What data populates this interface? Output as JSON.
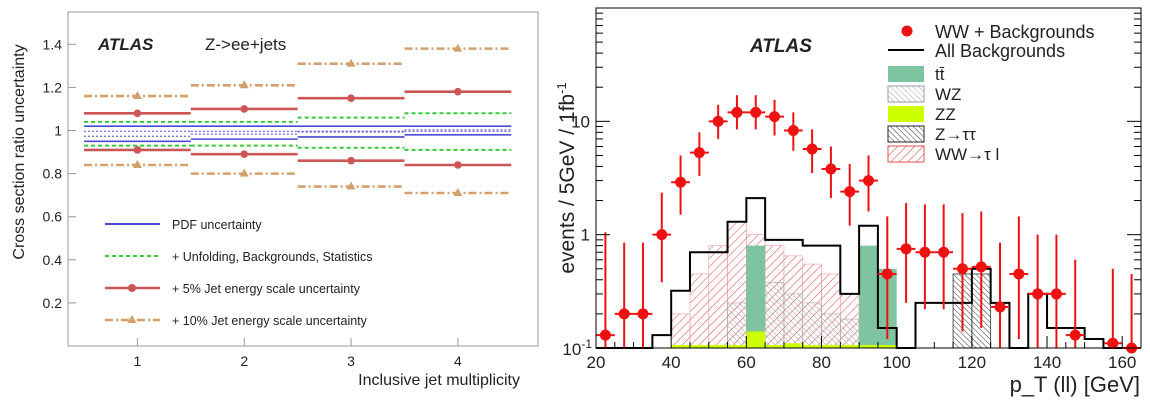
{
  "colors": {
    "pdf": "#4a4ad8",
    "unfold": "#33cc33",
    "jes5": "#cc5555",
    "jes10": "#d4a06a",
    "data": "#ee1111",
    "ttbar": "#7fc4a0",
    "zz": "#ccff00",
    "wwtau": "#e05050"
  },
  "chart_data": [
    {
      "type": "line",
      "panel": "left",
      "brand": "ATLAS",
      "subtitle": "Z->ee+jets",
      "xlabel": "Inclusive jet multiplicity",
      "ylabel": "Cross section ratio uncertainty",
      "xlim": [
        0.35,
        4.75
      ],
      "ylim": [
        0.0,
        1.55
      ],
      "xticks": [
        "1",
        "2",
        "3",
        "4"
      ],
      "yticks": [
        "0.2",
        "0.4",
        "0.6",
        "0.8",
        "1",
        "1.2",
        "1.4"
      ],
      "bins": [
        1,
        2,
        3,
        4
      ],
      "series": [
        {
          "name": "PDF uncertainty",
          "style": "solid",
          "color_key": "pdf",
          "upper": [
            1.02,
            1.02,
            1.02,
            1.02
          ],
          "lower": [
            0.95,
            0.96,
            0.97,
            0.98
          ]
        },
        {
          "name": "+ Unfolding, Backgrounds, Statistics",
          "style": "dashed",
          "color_key": "unfold",
          "upper": [
            1.04,
            1.04,
            1.06,
            1.08
          ],
          "lower": [
            0.93,
            0.93,
            0.92,
            0.91
          ]
        },
        {
          "name": "+   5% Jet energy scale uncertainty",
          "style": "solid-marker",
          "color_key": "jes5",
          "upper": [
            1.08,
            1.1,
            1.15,
            1.18
          ],
          "lower": [
            0.91,
            0.89,
            0.86,
            0.84
          ]
        },
        {
          "name": "+ 10% Jet energy scale uncertainty",
          "style": "dashdot-marker",
          "color_key": "jes10",
          "upper": [
            1.16,
            1.21,
            1.31,
            1.38
          ],
          "lower": [
            0.84,
            0.8,
            0.74,
            0.71
          ]
        }
      ]
    },
    {
      "type": "bar",
      "panel": "right",
      "brand": "ATLAS",
      "xlabel": "p_T (ll) [GeV]",
      "ylabel": "events / 5GeV / 1fb",
      "ylabel_sup": "-1",
      "log_y": true,
      "xlim": [
        20,
        165
      ],
      "ylim": [
        0.1,
        100
      ],
      "xticks": [
        "20",
        "40",
        "60",
        "80",
        "100",
        "120",
        "140",
        "160"
      ],
      "yticks": [
        "10",
        "1"
      ],
      "ytick_bottom": "10",
      "ytick_bottom_sup": "-1",
      "bin_edges": [
        20,
        25,
        30,
        35,
        40,
        45,
        50,
        55,
        60,
        65,
        70,
        75,
        80,
        85,
        90,
        95,
        100,
        105,
        110,
        115,
        120,
        125,
        130,
        135,
        140,
        145,
        150,
        155,
        160,
        165
      ],
      "all_backgrounds": [
        0.1,
        0.1,
        0.1,
        0.13,
        0.32,
        0.7,
        0.7,
        1.3,
        2.1,
        0.9,
        0.9,
        0.8,
        0.8,
        0.3,
        1.2,
        0.15,
        0.1,
        0.25,
        0.25,
        0.25,
        0.5,
        0.25,
        0.1,
        0.3,
        0.15,
        0.15,
        0.12,
        0.1,
        0.1
      ],
      "ww_tau_l": [
        0.1,
        0.1,
        0.1,
        0.1,
        0.2,
        0.45,
        0.8,
        1.3,
        1.0,
        0.8,
        0.65,
        0.55,
        0.45,
        0.3,
        0.25,
        0.15,
        0.1,
        0.1,
        0.1,
        0.1,
        0.1,
        0.1,
        0.1,
        0.1,
        0.1,
        0.1,
        0.1,
        0.1,
        0.1
      ],
      "ttbar_bins": [
        {
          "x0": 60,
          "x1": 65,
          "value": 0.8
        },
        {
          "x0": 90,
          "x1": 95,
          "value": 0.8
        },
        {
          "x0": 95,
          "x1": 100,
          "value": 0.5
        }
      ],
      "wz_bins": [
        {
          "x0": 55,
          "x1": 60,
          "value": 0.25
        },
        {
          "x0": 60,
          "x1": 65,
          "value": 0.35
        },
        {
          "x0": 65,
          "x1": 70,
          "value": 0.38
        },
        {
          "x0": 70,
          "x1": 75,
          "value": 0.3
        },
        {
          "x0": 75,
          "x1": 80,
          "value": 0.25
        },
        {
          "x0": 80,
          "x1": 85,
          "value": 0.2
        },
        {
          "x0": 85,
          "x1": 90,
          "value": 0.18
        }
      ],
      "ztautau_bins": [
        {
          "x0": 115,
          "x1": 120,
          "value": 0.45
        },
        {
          "x0": 120,
          "x1": 125,
          "value": 0.45
        }
      ],
      "zz_bins": [
        {
          "x0": 60,
          "x1": 65,
          "value": 0.14
        },
        {
          "x0": 70,
          "x1": 75,
          "value": 0.11
        }
      ],
      "data_points": [
        {
          "x": 22.5,
          "y": 0.13,
          "lo": 0.1,
          "hi": 1.05
        },
        {
          "x": 27.5,
          "y": 0.2,
          "lo": 0.1,
          "hi": 0.85
        },
        {
          "x": 32.5,
          "y": 0.2,
          "lo": 0.1,
          "hi": 0.85
        },
        {
          "x": 37.5,
          "y": 1.0,
          "lo": 0.38,
          "hi": 2.35
        },
        {
          "x": 42.5,
          "y": 2.9,
          "lo": 1.5,
          "hi": 5.0
        },
        {
          "x": 47.5,
          "y": 5.3,
          "lo": 3.3,
          "hi": 8.0
        },
        {
          "x": 52.5,
          "y": 10.0,
          "lo": 7.0,
          "hi": 14.0
        },
        {
          "x": 57.5,
          "y": 12.0,
          "lo": 8.5,
          "hi": 17.0
        },
        {
          "x": 62.5,
          "y": 12.0,
          "lo": 8.5,
          "hi": 17.0
        },
        {
          "x": 67.5,
          "y": 11.0,
          "lo": 7.5,
          "hi": 15.5
        },
        {
          "x": 72.5,
          "y": 8.3,
          "lo": 5.5,
          "hi": 12.0
        },
        {
          "x": 77.5,
          "y": 5.7,
          "lo": 3.5,
          "hi": 8.5
        },
        {
          "x": 82.5,
          "y": 3.8,
          "lo": 2.1,
          "hi": 6.0
        },
        {
          "x": 87.5,
          "y": 2.4,
          "lo": 1.2,
          "hi": 4.2
        },
        {
          "x": 92.5,
          "y": 3.0,
          "lo": 1.6,
          "hi": 5.0
        },
        {
          "x": 97.5,
          "y": 0.45,
          "lo": 0.12,
          "hi": 1.45
        },
        {
          "x": 102.5,
          "y": 0.75,
          "lo": 0.25,
          "hi": 1.9
        },
        {
          "x": 107.5,
          "y": 0.7,
          "lo": 0.22,
          "hi": 1.85
        },
        {
          "x": 112.5,
          "y": 0.7,
          "lo": 0.22,
          "hi": 1.85
        },
        {
          "x": 117.5,
          "y": 0.5,
          "lo": 0.14,
          "hi": 1.55
        },
        {
          "x": 122.5,
          "y": 0.52,
          "lo": 0.15,
          "hi": 1.6
        },
        {
          "x": 127.5,
          "y": 0.23,
          "lo": 0.1,
          "hi": 0.85
        },
        {
          "x": 132.5,
          "y": 0.45,
          "lo": 0.12,
          "hi": 1.45
        },
        {
          "x": 137.5,
          "y": 0.3,
          "lo": 0.1,
          "hi": 1.0
        },
        {
          "x": 142.5,
          "y": 0.3,
          "lo": 0.1,
          "hi": 1.0
        },
        {
          "x": 147.5,
          "y": 0.13,
          "lo": 0.1,
          "hi": 0.6
        },
        {
          "x": 157.5,
          "y": 0.11,
          "lo": 0.1,
          "hi": 0.5
        },
        {
          "x": 162.5,
          "y": 0.1,
          "lo": 0.1,
          "hi": 0.45
        }
      ],
      "legend": [
        {
          "label": "WW + Backgrounds",
          "key": "data"
        },
        {
          "label": "All Backgrounds",
          "key": "allbkg"
        },
        {
          "label": "tt̄",
          "key": "ttbar"
        },
        {
          "label": "WZ",
          "key": "wz"
        },
        {
          "label": "ZZ",
          "key": "zz"
        },
        {
          "label": "Z→ττ",
          "key": "ztautau"
        },
        {
          "label": "WW→τ l",
          "key": "wwtau"
        }
      ]
    }
  ]
}
